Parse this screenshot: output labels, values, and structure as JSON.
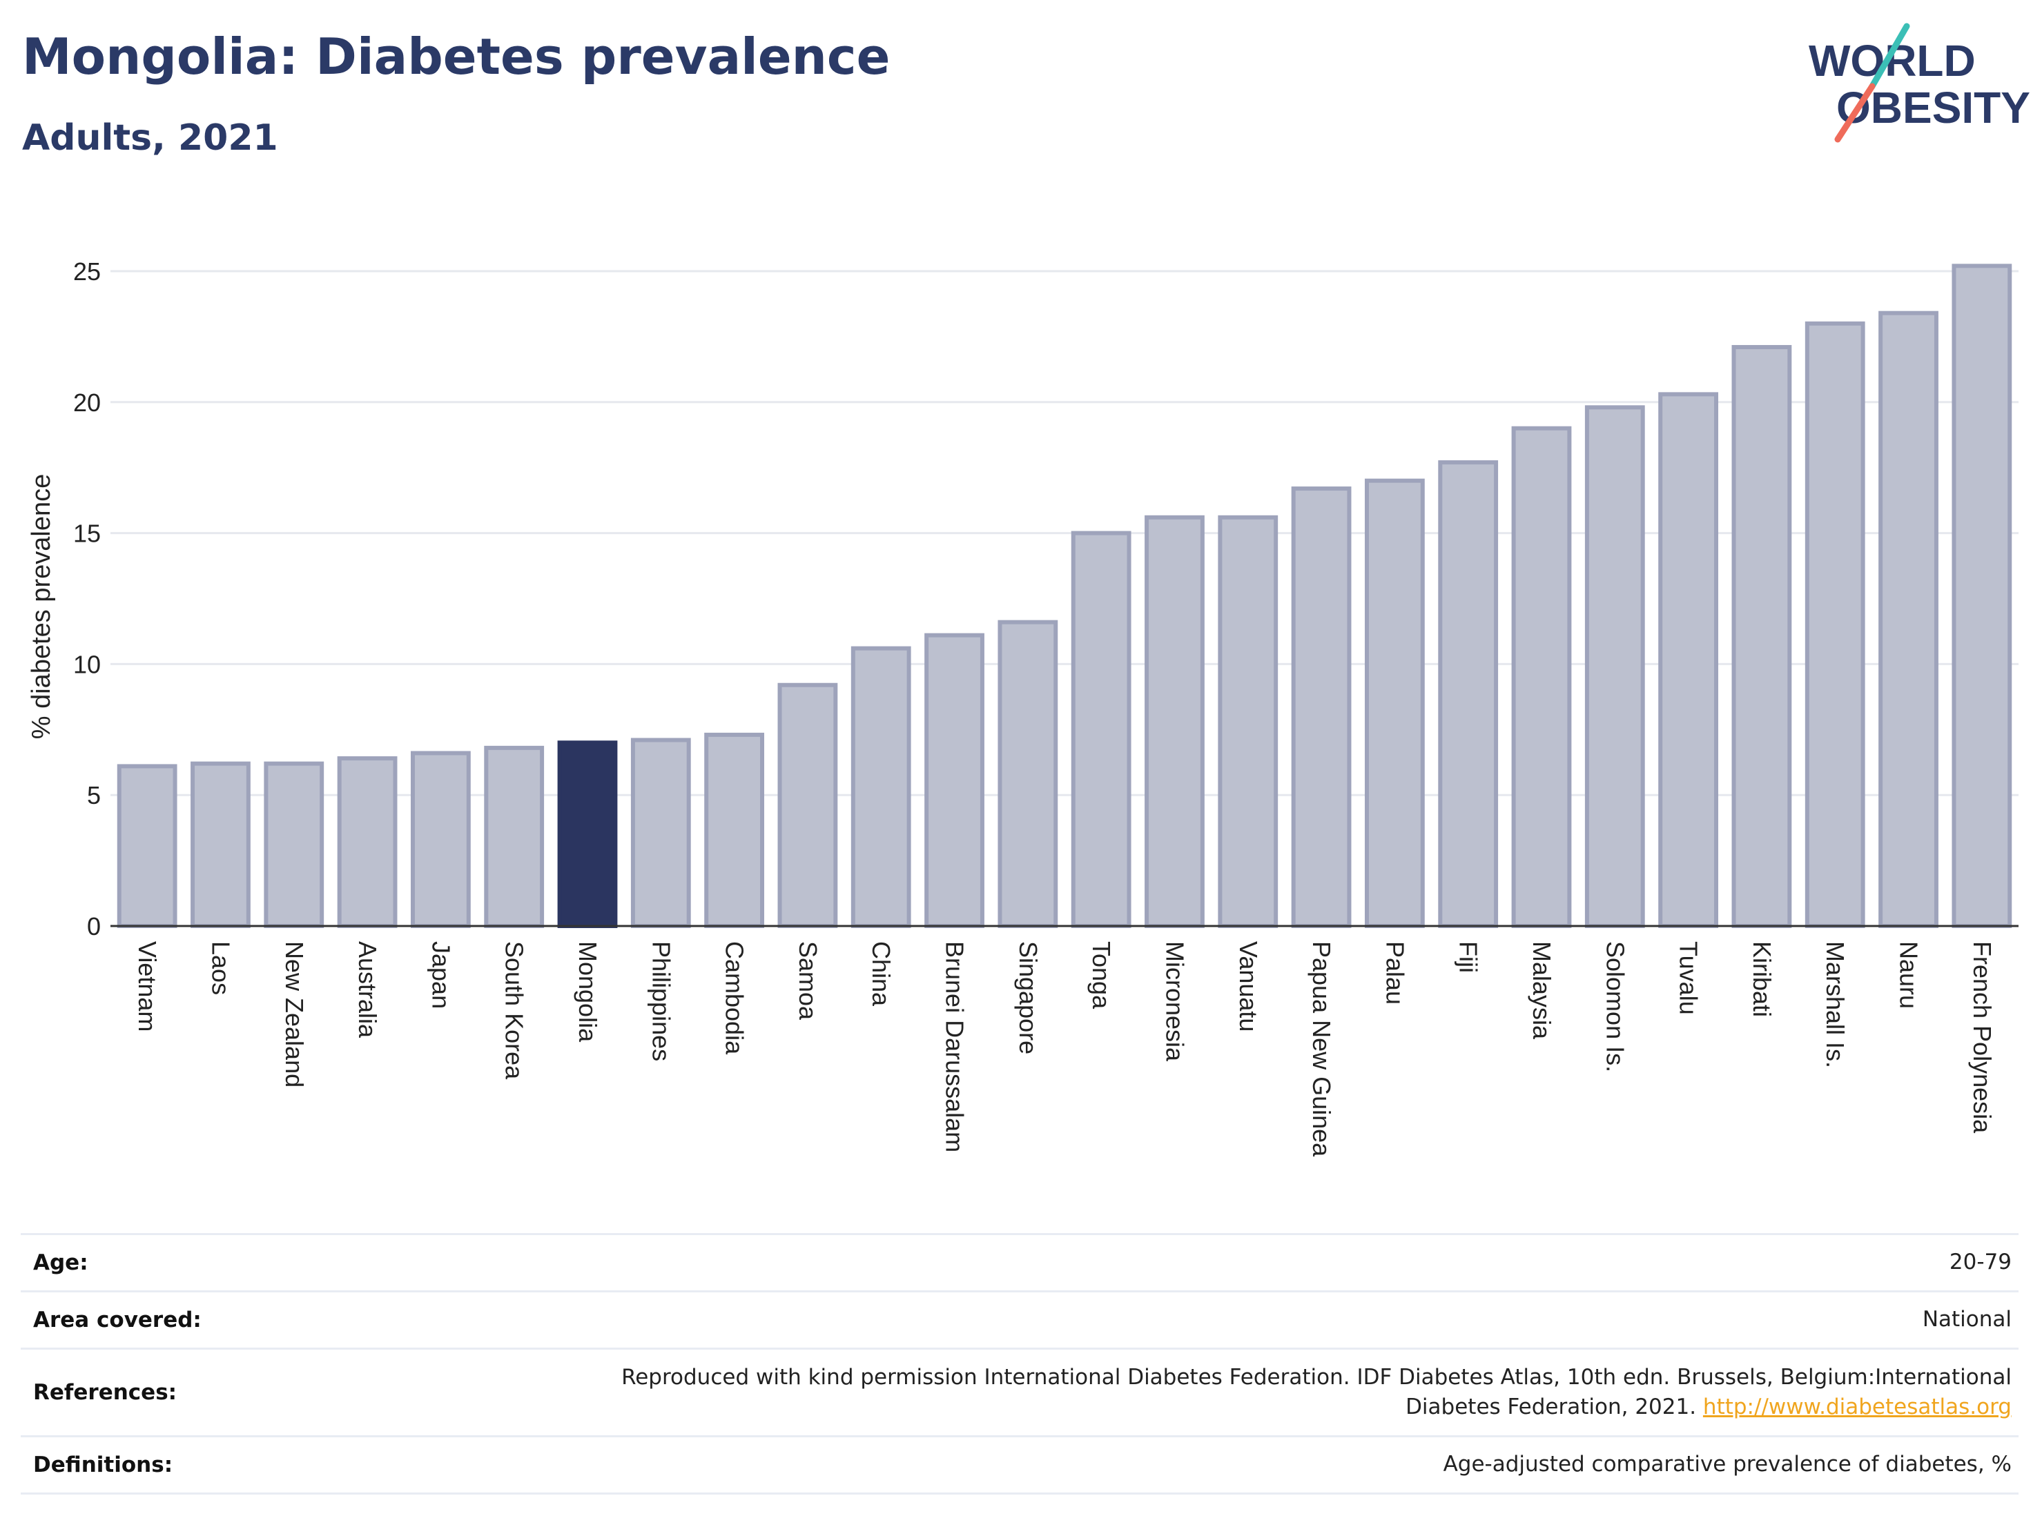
{
  "header": {
    "title": "Mongolia: Diabetes prevalence",
    "subtitle": "Adults, 2021"
  },
  "logo": {
    "line1": "WORLD",
    "line2": "OBESITY",
    "colors": {
      "text": "#2b3a67",
      "teal": "#3bbfb6",
      "coral": "#ef6b5a"
    }
  },
  "chart_data": {
    "type": "bar",
    "title": "Mongolia: Diabetes prevalence",
    "subtitle": "Adults, 2021",
    "xlabel": "",
    "ylabel": "% diabetes prevalence",
    "ylim": [
      0,
      26.5
    ],
    "yticks": [
      0,
      5,
      10,
      15,
      20,
      25
    ],
    "grid": true,
    "highlight": "Mongolia",
    "colors": {
      "bar": "#bcc0cf",
      "bar_edge": "#9ea3bb",
      "highlight": "#2b3560",
      "grid": "#e6e8ee",
      "axis": "#333333"
    },
    "categories": [
      "Vietnam",
      "Laos",
      "New Zealand",
      "Australia",
      "Japan",
      "South Korea",
      "Mongolia",
      "Philippines",
      "Cambodia",
      "Samoa",
      "China",
      "Brunei Darussalam",
      "Singapore",
      "Tonga",
      "Micronesia",
      "Vanuatu",
      "Papua New Guinea",
      "Palau",
      "Fiji",
      "Malaysia",
      "Solomon Is.",
      "Tuvalu",
      "Kiribati",
      "Marshall Is.",
      "Nauru",
      "French Polynesia"
    ],
    "values": [
      6.1,
      6.2,
      6.2,
      6.4,
      6.6,
      6.8,
      7.0,
      7.1,
      7.3,
      9.2,
      10.6,
      11.1,
      11.6,
      15.0,
      15.6,
      15.6,
      16.7,
      17.0,
      17.7,
      19.0,
      19.8,
      20.3,
      22.1,
      23.0,
      23.4,
      25.2
    ]
  },
  "info": [
    {
      "label": "Age:",
      "value": "20-79"
    },
    {
      "label": "Area covered:",
      "value": "National"
    },
    {
      "label": "References:",
      "value": "Reproduced with kind permission International Diabetes Federation.  IDF Diabetes Atlas, 10th edn. Brussels, Belgium:International Diabetes Federation, 2021.",
      "link": "http://www.diabetesatlas.org"
    },
    {
      "label": "Definitions:",
      "value": "Age-adjusted comparative prevalence of diabetes, %"
    }
  ]
}
